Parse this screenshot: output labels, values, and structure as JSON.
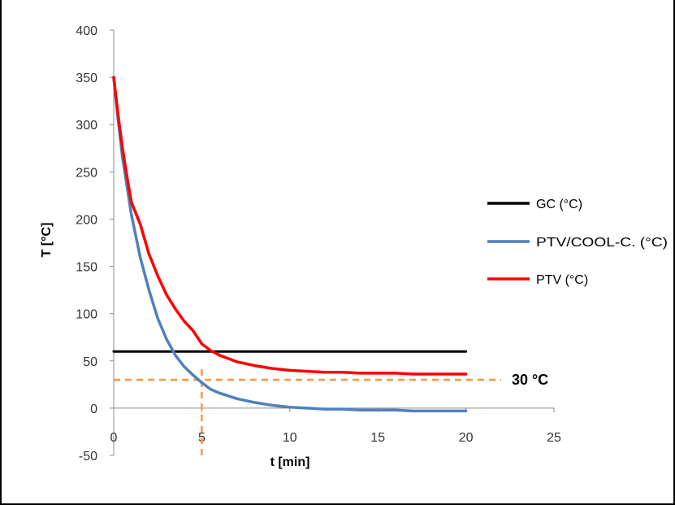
{
  "chart_data": {
    "type": "line",
    "title": "",
    "xlabel": "t [min]",
    "ylabel": "T [°C]",
    "xlim": [
      0,
      25
    ],
    "ylim": [
      -50,
      400
    ],
    "xticks": [
      0,
      5,
      10,
      15,
      20,
      25
    ],
    "yticks": [
      -50,
      0,
      50,
      100,
      150,
      200,
      250,
      300,
      350,
      400
    ],
    "grid": false,
    "legend_position": "right",
    "series": [
      {
        "name": "GC (°C)",
        "color": "#000000",
        "x": [
          0,
          20
        ],
        "y": [
          60,
          60
        ]
      },
      {
        "name": "PTV/COOL-C. (°C)",
        "color": "#4f81bd",
        "x": [
          0,
          0.25,
          0.5,
          0.75,
          1,
          1.5,
          2,
          2.5,
          3,
          3.5,
          4,
          4.5,
          5,
          5.5,
          6,
          7,
          8,
          9,
          10,
          11,
          12,
          13,
          14,
          15,
          16,
          17,
          18,
          19,
          20
        ],
        "y": [
          350,
          305,
          265,
          235,
          205,
          160,
          125,
          95,
          73,
          56,
          44,
          35,
          27,
          20,
          16,
          10,
          6,
          3,
          1,
          0,
          -1,
          -1,
          -2,
          -2,
          -2,
          -3,
          -3,
          -3,
          -3
        ]
      },
      {
        "name": "PTV (°C)",
        "color": "#ff0000",
        "x": [
          0,
          0.25,
          0.5,
          0.75,
          1,
          1.5,
          2,
          2.5,
          3,
          3.5,
          4,
          4.5,
          5,
          5.5,
          6,
          7,
          8,
          9,
          10,
          11,
          12,
          13,
          14,
          15,
          16,
          17,
          18,
          19,
          20
        ],
        "y": [
          350,
          310,
          275,
          245,
          218,
          195,
          163,
          140,
          120,
          105,
          92,
          82,
          68,
          61,
          56,
          49,
          45,
          42,
          40,
          39,
          38,
          38,
          37,
          37,
          37,
          36,
          36,
          36,
          36
        ]
      }
    ],
    "reference_lines": [
      {
        "type": "horizontal",
        "y": 30,
        "x_from": 0,
        "x_to": 22,
        "color": "#f79646"
      },
      {
        "type": "vertical",
        "x": 5,
        "y_from": -50,
        "y_to": 45,
        "color": "#f79646"
      }
    ],
    "annotations": [
      {
        "text": "30 °C",
        "x": 22.6,
        "y": 30
      }
    ]
  }
}
